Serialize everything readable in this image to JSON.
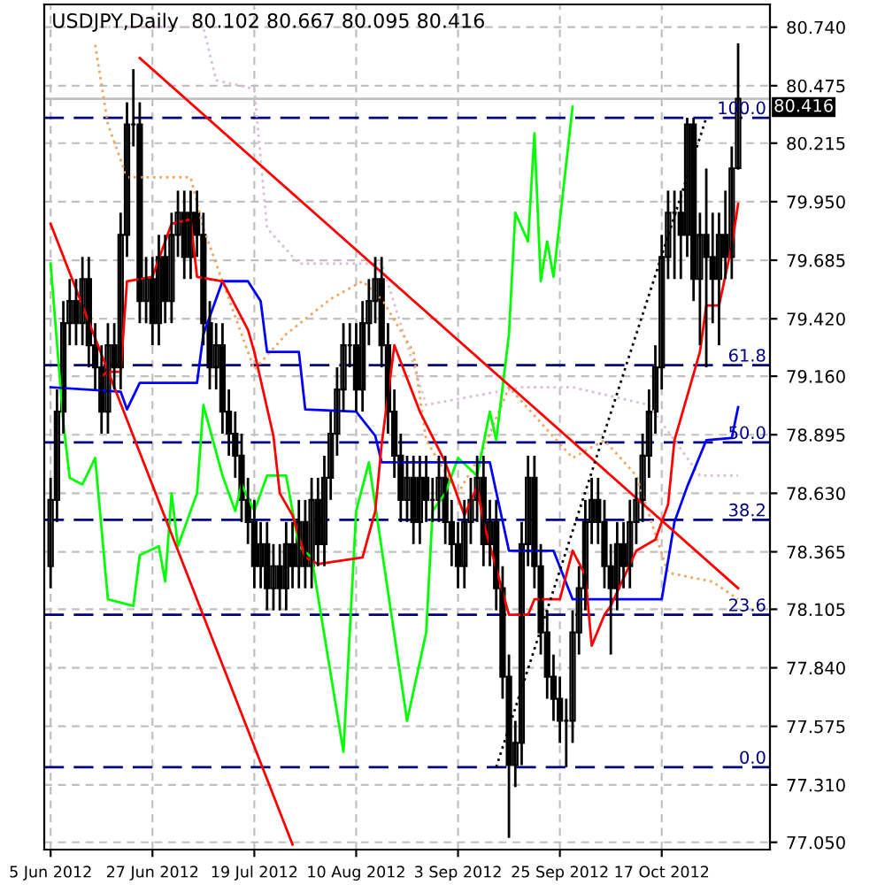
{
  "chart_data": {
    "type": "candlestick",
    "title": "USDJPY,Daily  80.102 80.667 80.095 80.416",
    "categories": [
      "5 Jun 2012",
      null,
      null,
      null,
      null,
      null,
      null,
      null,
      null,
      null,
      null,
      null,
      null,
      null,
      null,
      null,
      "27 Jun 2012",
      null,
      null,
      null,
      null,
      null,
      null,
      null,
      null,
      null,
      null,
      null,
      null,
      null,
      null,
      null,
      "19 Jul 2012",
      null,
      null,
      null,
      null,
      null,
      null,
      null,
      null,
      null,
      null,
      null,
      null,
      null,
      null,
      null,
      "10 Aug 2012",
      null,
      null,
      null,
      null,
      null,
      null,
      null,
      null,
      null,
      null,
      null,
      null,
      null,
      null,
      null,
      "3 Sep 2012",
      null,
      null,
      null,
      null,
      null,
      null,
      null,
      null,
      null,
      null,
      null,
      null,
      null,
      null,
      null,
      "25 Sep 2012",
      null,
      null,
      null,
      null,
      null,
      null,
      null,
      null,
      null,
      null,
      null,
      null,
      null,
      null,
      null,
      "17 Oct 2012",
      null,
      null,
      null,
      null,
      null,
      null,
      null,
      null,
      null,
      null,
      null,
      null
    ],
    "ohlc": [
      [
        78.3,
        78.7,
        78.2,
        78.6
      ],
      [
        78.6,
        79.1,
        78.5,
        79.0
      ],
      [
        79.0,
        79.5,
        78.9,
        79.4
      ],
      [
        79.4,
        79.6,
        79.3,
        79.5
      ],
      [
        79.5,
        79.6,
        79.3,
        79.4
      ],
      [
        79.4,
        79.7,
        79.3,
        79.6
      ],
      [
        79.6,
        79.7,
        79.2,
        79.3
      ],
      [
        79.3,
        79.4,
        79.1,
        79.2
      ],
      [
        79.2,
        79.3,
        78.9,
        79.0
      ],
      [
        79.0,
        79.4,
        78.9,
        79.3
      ],
      [
        79.3,
        79.4,
        79.1,
        79.2
      ],
      [
        79.2,
        79.9,
        79.1,
        79.8
      ],
      [
        79.8,
        80.4,
        79.7,
        80.3
      ],
      [
        80.3,
        80.55,
        80.2,
        80.3
      ],
      [
        80.3,
        80.4,
        79.4,
        79.5
      ],
      [
        79.5,
        79.7,
        79.4,
        79.6
      ],
      [
        79.6,
        79.7,
        79.3,
        79.4
      ],
      [
        79.4,
        79.8,
        79.3,
        79.7
      ],
      [
        79.7,
        79.8,
        79.4,
        79.5
      ],
      [
        79.5,
        79.9,
        79.4,
        79.8
      ],
      [
        79.8,
        80.0,
        79.7,
        79.9
      ],
      [
        79.9,
        80.0,
        79.6,
        79.7
      ],
      [
        79.7,
        80.0,
        79.6,
        79.9
      ],
      [
        79.9,
        80.0,
        79.7,
        79.8
      ],
      [
        79.8,
        79.9,
        79.3,
        79.4
      ],
      [
        79.4,
        79.5,
        79.1,
        79.2
      ],
      [
        79.2,
        79.4,
        79.1,
        79.3
      ],
      [
        79.3,
        79.4,
        78.9,
        79.0
      ],
      [
        79.0,
        79.1,
        78.8,
        78.9
      ],
      [
        78.9,
        79.0,
        78.7,
        78.8
      ],
      [
        78.8,
        78.9,
        78.5,
        78.6
      ],
      [
        78.6,
        78.7,
        78.4,
        78.5
      ],
      [
        78.5,
        78.6,
        78.2,
        78.3
      ],
      [
        78.3,
        78.5,
        78.2,
        78.4
      ],
      [
        78.4,
        78.5,
        78.1,
        78.2
      ],
      [
        78.2,
        78.4,
        78.1,
        78.3
      ],
      [
        78.3,
        78.4,
        78.1,
        78.2
      ],
      [
        78.2,
        78.5,
        78.1,
        78.4
      ],
      [
        78.4,
        78.5,
        78.2,
        78.3
      ],
      [
        78.3,
        78.6,
        78.2,
        78.5
      ],
      [
        78.5,
        78.6,
        78.2,
        78.3
      ],
      [
        78.3,
        78.7,
        78.2,
        78.6
      ],
      [
        78.6,
        78.7,
        78.3,
        78.4
      ],
      [
        78.4,
        78.8,
        78.3,
        78.7
      ],
      [
        78.7,
        79.0,
        78.6,
        78.9
      ],
      [
        78.9,
        79.2,
        78.8,
        79.1
      ],
      [
        79.1,
        79.4,
        79.0,
        79.3
      ],
      [
        79.3,
        79.4,
        79.2,
        79.3
      ],
      [
        79.3,
        79.4,
        79.0,
        79.1
      ],
      [
        79.1,
        79.5,
        79.0,
        79.4
      ],
      [
        79.4,
        79.6,
        79.3,
        79.5
      ],
      [
        79.5,
        79.7,
        79.4,
        79.6
      ],
      [
        79.6,
        79.7,
        79.2,
        79.3
      ],
      [
        79.3,
        79.4,
        78.9,
        79.0
      ],
      [
        79.0,
        79.1,
        78.7,
        78.8
      ],
      [
        78.8,
        78.9,
        78.5,
        78.6
      ],
      [
        78.6,
        78.8,
        78.5,
        78.7
      ],
      [
        78.7,
        78.8,
        78.4,
        78.5
      ],
      [
        78.5,
        78.8,
        78.4,
        78.7
      ],
      [
        78.7,
        78.8,
        78.5,
        78.6
      ],
      [
        78.6,
        78.7,
        78.5,
        78.6
      ],
      [
        78.6,
        78.8,
        78.5,
        78.7
      ],
      [
        78.7,
        78.8,
        78.4,
        78.5
      ],
      [
        78.5,
        78.6,
        78.3,
        78.4
      ],
      [
        78.4,
        78.5,
        78.2,
        78.3
      ],
      [
        78.3,
        78.6,
        78.2,
        78.5
      ],
      [
        78.5,
        78.7,
        78.4,
        78.6
      ],
      [
        78.6,
        78.8,
        78.5,
        78.7
      ],
      [
        78.7,
        78.8,
        78.3,
        78.4
      ],
      [
        78.4,
        78.6,
        78.3,
        78.5
      ],
      [
        78.5,
        78.6,
        78.1,
        78.2
      ],
      [
        78.2,
        78.3,
        77.7,
        77.8
      ],
      [
        77.8,
        77.9,
        77.07,
        77.4
      ],
      [
        77.4,
        77.6,
        77.3,
        77.5
      ],
      [
        77.5,
        78.5,
        77.4,
        78.4
      ],
      [
        78.4,
        78.8,
        78.3,
        78.7
      ],
      [
        78.7,
        78.8,
        78.2,
        78.3
      ],
      [
        78.3,
        78.4,
        77.9,
        78.0
      ],
      [
        78.0,
        78.1,
        77.7,
        77.8
      ],
      [
        77.8,
        77.9,
        77.6,
        77.7
      ],
      [
        77.7,
        77.8,
        77.5,
        77.6
      ],
      [
        77.6,
        77.7,
        77.39,
        77.6
      ],
      [
        77.6,
        78.1,
        77.5,
        78.0
      ],
      [
        78.0,
        78.3,
        77.9,
        78.2
      ],
      [
        78.2,
        78.6,
        78.1,
        78.5
      ],
      [
        78.5,
        78.7,
        78.4,
        78.6
      ],
      [
        78.6,
        78.7,
        78.4,
        78.5
      ],
      [
        78.5,
        78.6,
        78.2,
        78.3
      ],
      [
        78.3,
        78.4,
        77.9,
        78.2
      ],
      [
        78.2,
        78.5,
        78.1,
        78.4
      ],
      [
        78.4,
        78.5,
        78.2,
        78.3
      ],
      [
        78.3,
        78.6,
        78.2,
        78.5
      ],
      [
        78.5,
        78.7,
        78.4,
        78.6
      ],
      [
        78.6,
        78.9,
        78.5,
        78.8
      ],
      [
        78.8,
        79.1,
        78.7,
        79.0
      ],
      [
        79.0,
        79.3,
        78.9,
        79.2
      ],
      [
        79.2,
        79.8,
        79.1,
        79.7
      ],
      [
        79.7,
        80.0,
        79.6,
        79.9
      ],
      [
        79.9,
        80.0,
        79.6,
        79.9
      ],
      [
        79.9,
        80.0,
        79.6,
        79.8
      ],
      [
        79.8,
        80.33,
        79.7,
        80.3
      ],
      [
        80.3,
        80.33,
        79.5,
        79.6
      ],
      [
        79.6,
        79.9,
        79.3,
        79.8
      ],
      [
        79.8,
        80.1,
        79.2,
        79.7
      ],
      [
        79.7,
        79.9,
        79.4,
        79.6
      ],
      [
        79.6,
        79.9,
        79.3,
        79.8
      ],
      [
        79.8,
        80.0,
        79.6,
        79.7
      ],
      [
        79.7,
        80.2,
        79.6,
        80.1
      ],
      [
        80.102,
        80.667,
        80.095,
        80.416
      ]
    ],
    "annotations": [
      {
        "text": "0.0",
        "y": 77.39
      },
      {
        "text": "23.6",
        "y": 78.08
      },
      {
        "text": "38.2",
        "y": 78.51
      },
      {
        "text": "50.0",
        "y": 78.86
      },
      {
        "text": "61.8",
        "y": 79.21
      },
      {
        "text": "100.0",
        "y": 80.33
      }
    ],
    "series": [
      {
        "type": "line",
        "color": "#d8bfd8",
        "line_style": "dotted",
        "values": [
          null,
          null,
          null,
          null,
          null,
          null,
          null,
          null,
          80.74,
          null,
          null,
          null,
          null,
          null,
          null,
          null,
          null,
          null,
          null,
          null,
          null,
          null,
          null,
          null,
          80.74,
          null,
          80.5,
          null,
          null,
          null,
          null,
          null,
          80.46,
          null,
          79.83,
          null,
          null,
          null,
          null,
          79.67,
          null,
          null,
          null,
          null,
          null,
          null,
          null,
          null,
          null,
          null,
          null,
          null,
          79.67,
          null,
          null,
          null,
          null,
          null,
          null,
          79.03,
          null,
          null,
          null,
          null,
          null,
          null,
          null,
          null,
          null,
          null,
          null,
          null,
          null,
          null,
          79.11,
          null,
          null,
          null,
          null,
          null,
          null,
          null,
          79.11,
          null,
          null,
          null,
          null,
          null,
          null,
          null,
          null,
          null,
          null,
          null,
          79.03,
          null,
          null,
          null,
          null,
          null,
          null,
          null,
          78.71,
          null,
          null,
          null,
          null,
          null,
          78.71
        ]
      },
      {
        "type": "line",
        "color": "#f4a460",
        "line_style": "dotted",
        "values": [
          null,
          null,
          null,
          null,
          null,
          null,
          null,
          80.66,
          null,
          80.3,
          null,
          null,
          80.06,
          null,
          null,
          null,
          null,
          null,
          null,
          null,
          null,
          null,
          80.06,
          null,
          79.83,
          null,
          null,
          79.59,
          null,
          null,
          null,
          null,
          79.19,
          null,
          null,
          null,
          null,
          79.35,
          null,
          null,
          null,
          null,
          null,
          null,
          79.51,
          null,
          null,
          null,
          null,
          79.59,
          null,
          null,
          79.51,
          null,
          null,
          null,
          null,
          79.27,
          null,
          78.87,
          null,
          null,
          null,
          null,
          78.63,
          null,
          null,
          null,
          78.83,
          null,
          null,
          null,
          79.11,
          null,
          null,
          null,
          null,
          78.95,
          null,
          null,
          null,
          null,
          78.79,
          null,
          null,
          null,
          null,
          78.87,
          null,
          null,
          null,
          null,
          78.71,
          null,
          null,
          null,
          null,
          78.27,
          null,
          null,
          null,
          null,
          null,
          null,
          78.23,
          null,
          null,
          null,
          78.15
        ]
      },
      {
        "type": "line",
        "color": "#00ff00",
        "line_style": "solid",
        "values": [
          79.67,
          null,
          78.95,
          78.7,
          null,
          78.67,
          null,
          78.79,
          null,
          78.15,
          null,
          null,
          null,
          78.12,
          78.35,
          null,
          null,
          78.39,
          78.23,
          78.63,
          78.39,
          null,
          null,
          78.63,
          79.03,
          null,
          null,
          78.71,
          null,
          78.55,
          78.67,
          null,
          78.55,
          null,
          78.71,
          null,
          null,
          78.71,
          null,
          78.39,
          null,
          78.34,
          null,
          null,
          null,
          null,
          77.46,
          null,
          78.55,
          null,
          78.77,
          null,
          null,
          null,
          null,
          null,
          77.6,
          null,
          null,
          78.0,
          78.55,
          null,
          78.63,
          null,
          78.79,
          null,
          null,
          78.71,
          null,
          79.0,
          78.87,
          null,
          79.35,
          79.9,
          null,
          79.77,
          80.26,
          79.59,
          79.77,
          79.61,
          null,
          null,
          80.38,
          null,
          null,
          null,
          null,
          null,
          null,
          null,
          null,
          null,
          null,
          null,
          null,
          null,
          null,
          null,
          null,
          null,
          null,
          null,
          null,
          null,
          null,
          null,
          null,
          null,
          null
        ]
      },
      {
        "type": "line",
        "color": "#0000ff",
        "line_style": "solid",
        "values": [
          79.11,
          null,
          null,
          null,
          null,
          null,
          null,
          null,
          null,
          null,
          null,
          79.09,
          79.01,
          null,
          79.13,
          null,
          null,
          null,
          null,
          null,
          null,
          null,
          null,
          79.13,
          79.35,
          null,
          null,
          79.59,
          null,
          null,
          null,
          79.59,
          null,
          79.5,
          79.27,
          null,
          null,
          null,
          null,
          79.27,
          79.01,
          null,
          null,
          null,
          null,
          null,
          null,
          null,
          79.0,
          null,
          null,
          78.89,
          78.77,
          null,
          null,
          null,
          null,
          null,
          null,
          null,
          null,
          null,
          78.77,
          null,
          null,
          null,
          null,
          null,
          null,
          78.77,
          null,
          null,
          78.37,
          null,
          null,
          null,
          null,
          null,
          null,
          78.37,
          null,
          null,
          78.15,
          null,
          null,
          null,
          null,
          null,
          null,
          null,
          null,
          null,
          null,
          null,
          null,
          null,
          78.15,
          null,
          78.5,
          null,
          78.66,
          null,
          null,
          78.87,
          null,
          null,
          null,
          78.88,
          79.02
        ]
      },
      {
        "type": "line",
        "color": "#ff0000",
        "line_style": "solid",
        "values": [
          null,
          null,
          null,
          null,
          null,
          null,
          null,
          null,
          79.16,
          79.18,
          null,
          79.18,
          79.59,
          null,
          null,
          null,
          79.61,
          null,
          null,
          79.85,
          null,
          null,
          79.87,
          79.61,
          null,
          null,
          null,
          79.59,
          null,
          null,
          null,
          79.37,
          79.27,
          null,
          null,
          78.89,
          78.63,
          null,
          78.53,
          null,
          78.34,
          null,
          78.31,
          null,
          null,
          null,
          null,
          null,
          null,
          78.34,
          null,
          78.55,
          78.85,
          null,
          79.3,
          null,
          null,
          null,
          79.0,
          null,
          null,
          null,
          78.77,
          null,
          null,
          78.53,
          null,
          78.66,
          78.5,
          null,
          null,
          null,
          78.08,
          null,
          null,
          78.08,
          78.15,
          null,
          null,
          null,
          78.15,
          null,
          78.37,
          null,
          78.26,
          77.94,
          null,
          78.08,
          78.12,
          null,
          null,
          null,
          78.37,
          null,
          null,
          78.42,
          null,
          78.58,
          78.87,
          78.97,
          null,
          null,
          79.27,
          79.48,
          null,
          79.48,
          null,
          79.75,
          79.94
        ]
      },
      {
        "type": "line",
        "color": "#ff0000",
        "line_style": "solid",
        "values": [
          79.85,
          null,
          null,
          null,
          null,
          null,
          null,
          null,
          null,
          null,
          null,
          null,
          null,
          null,
          null,
          null,
          null,
          null,
          null,
          null,
          null,
          null,
          null,
          null,
          null,
          null,
          null,
          null,
          null,
          null,
          null,
          null,
          null,
          null,
          null,
          null,
          null,
          null,
          77.04,
          null,
          null,
          null,
          null,
          null,
          null,
          null,
          null,
          null,
          null,
          null,
          null,
          null,
          null,
          null,
          null,
          null,
          null,
          null,
          null,
          null,
          null,
          null,
          null,
          null,
          null,
          null,
          null,
          null,
          null,
          null,
          null,
          null,
          null,
          null,
          null,
          null,
          null,
          null,
          null,
          null,
          null,
          null,
          null,
          null,
          null,
          null,
          null,
          null,
          null,
          null,
          null,
          null,
          null,
          null,
          null,
          null,
          null,
          null,
          null,
          null,
          null,
          null,
          null,
          null,
          null,
          null,
          null,
          null,
          null
        ]
      },
      {
        "type": "line",
        "color": "#ff0000",
        "line_style": "solid",
        "values": [
          null,
          null,
          null,
          null,
          null,
          null,
          null,
          null,
          null,
          null,
          null,
          null,
          null,
          null,
          80.6,
          null,
          null,
          null,
          null,
          null,
          null,
          null,
          null,
          null,
          null,
          null,
          null,
          null,
          null,
          null,
          null,
          null,
          null,
          null,
          null,
          null,
          null,
          null,
          null,
          null,
          null,
          null,
          null,
          null,
          null,
          null,
          null,
          null,
          null,
          null,
          null,
          null,
          null,
          null,
          null,
          null,
          null,
          null,
          null,
          null,
          null,
          null,
          null,
          null,
          null,
          null,
          null,
          null,
          null,
          null,
          null,
          null,
          null,
          null,
          null,
          null,
          null,
          null,
          null,
          null,
          null,
          null,
          null,
          null,
          null,
          null,
          null,
          null,
          null,
          null,
          null,
          null,
          null,
          null,
          null,
          null,
          null,
          null,
          null,
          null,
          null,
          null,
          null,
          null,
          null,
          null,
          null,
          null,
          78.2
        ]
      },
      {
        "type": "line",
        "color": "#000000",
        "line_style": "dotted",
        "values": [
          null,
          null,
          null,
          null,
          null,
          null,
          null,
          null,
          null,
          null,
          null,
          null,
          null,
          null,
          null,
          null,
          null,
          null,
          null,
          null,
          null,
          null,
          null,
          null,
          null,
          null,
          null,
          null,
          null,
          null,
          null,
          null,
          null,
          null,
          null,
          null,
          null,
          null,
          null,
          null,
          null,
          null,
          null,
          null,
          null,
          null,
          null,
          null,
          null,
          null,
          null,
          null,
          null,
          null,
          null,
          null,
          null,
          null,
          null,
          null,
          null,
          null,
          null,
          null,
          null,
          null,
          null,
          null,
          null,
          null,
          77.39,
          null,
          null,
          null,
          null,
          null,
          null,
          null,
          null,
          null,
          null,
          null,
          null,
          null,
          null,
          null,
          null,
          null,
          null,
          null,
          null,
          null,
          null,
          null,
          null,
          null,
          null,
          null,
          null,
          null,
          null,
          null,
          null,
          80.33,
          null,
          null,
          null,
          null,
          null
        ]
      }
    ],
    "ylim": [
      77.017,
      80.843
    ],
    "yticks": [
      {
        "value": 77.05,
        "label": "77.050"
      },
      {
        "value": 77.31,
        "label": "77.310"
      },
      {
        "value": 77.575,
        "label": "77.575"
      },
      {
        "value": 77.84,
        "label": "77.840"
      },
      {
        "value": 78.105,
        "label": "78.105"
      },
      {
        "value": 78.365,
        "label": "78.365"
      },
      {
        "value": 78.63,
        "label": "78.630"
      },
      {
        "value": 78.895,
        "label": "78.895"
      },
      {
        "value": 79.16,
        "label": "79.160"
      },
      {
        "value": 79.42,
        "label": "79.420"
      },
      {
        "value": 79.685,
        "label": "79.685"
      },
      {
        "value": 79.95,
        "label": "79.950"
      },
      {
        "value": 80.215,
        "label": "80.215"
      },
      {
        "value": 80.475,
        "label": "80.475"
      },
      {
        "value": 80.74,
        "label": "80.740"
      }
    ],
    "ref_lines": [
      {
        "axis": "y",
        "value": 77.39,
        "color": "#000080",
        "line_style": "dashed"
      },
      {
        "axis": "y",
        "value": 78.08,
        "color": "#000080",
        "line_style": "dashed"
      },
      {
        "axis": "y",
        "value": 78.51,
        "color": "#000080",
        "line_style": "dashed"
      },
      {
        "axis": "y",
        "value": 78.86,
        "color": "#000080",
        "line_style": "dashed"
      },
      {
        "axis": "y",
        "value": 79.21,
        "color": "#000080",
        "line_style": "dashed"
      },
      {
        "axis": "y",
        "value": 80.33,
        "color": "#000080",
        "line_style": "dashed"
      },
      {
        "axis": "y",
        "value": 80.416,
        "label": "80.416",
        "color": "#c0c0c0",
        "line_style": "solid"
      }
    ],
    "grid": true,
    "legend": false
  }
}
